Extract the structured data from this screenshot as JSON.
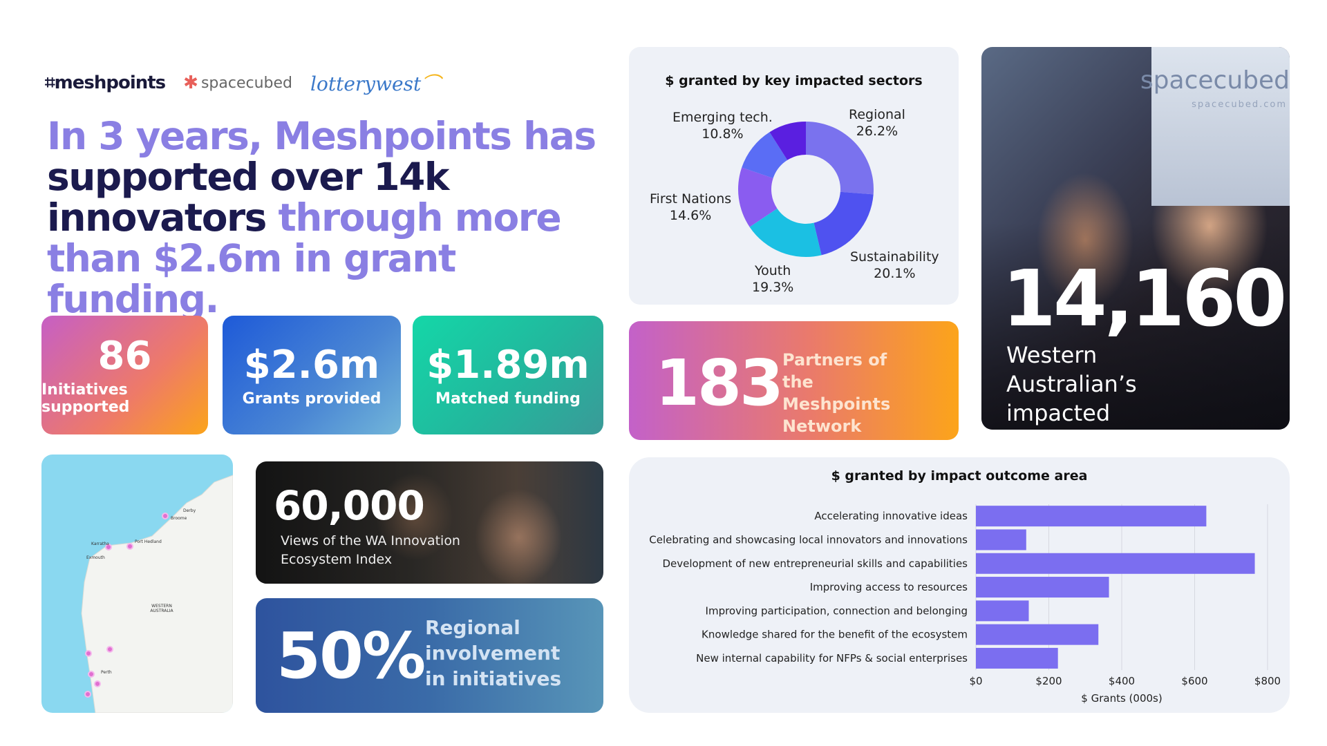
{
  "logos": {
    "meshpoints": "meshpoints",
    "spacecubed": "spacecubed",
    "lotterywest": "lotterywest"
  },
  "headline": {
    "part1": "In 3 years, Meshpoints has ",
    "part2": "supported over 14k innovators",
    "part3": " through more than $2.6m in grant funding."
  },
  "stats": [
    {
      "value": "86",
      "label": "Initiatives supported"
    },
    {
      "value": "$2.6m",
      "label": "Grants provided"
    },
    {
      "value": "$1.89m",
      "label": "Matched funding"
    }
  ],
  "partners": {
    "value": "183",
    "label": "Partners of the Meshpoints Network"
  },
  "people": {
    "value": "14,160",
    "label": "Western Australian’s impacted",
    "sign": "spacecubed",
    "sign_url": "spacecubed.com"
  },
  "views": {
    "value": "60,000",
    "label": "Views of the WA Innovation Ecosystem Index"
  },
  "regional": {
    "value": "50%",
    "label": "Regional involvement in initiatives"
  },
  "map": {
    "towns": [
      "Derby",
      "Broome",
      "Port Hedland",
      "Karratha",
      "Exmouth",
      "WESTERN AUSTRALIA",
      "Perth"
    ]
  },
  "colors": {
    "accent": "#8a7fe3",
    "navy": "#1b1a4e",
    "bar": "#7b6ef0"
  },
  "chart_data": [
    {
      "type": "pie",
      "title": "$ granted by key impacted sectors",
      "categories": [
        "Regional",
        "Sustainability",
        "Youth",
        "First Nations",
        "Emerging tech."
      ],
      "values": [
        26.2,
        20.1,
        19.3,
        14.6,
        10.8
      ],
      "colors": [
        "#7a72ee",
        "#4f52f0",
        "#1bc0e3",
        "#8a5cf0",
        "#5a6df5",
        "#5a1fe0"
      ]
    },
    {
      "type": "bar",
      "orientation": "horizontal",
      "title": "$ granted by impact outcome area",
      "xlabel": "$ Grants (000s)",
      "ylabel": "",
      "xlim": [
        0,
        800
      ],
      "xticks": [
        "$0",
        "$200",
        "$400",
        "$600",
        "$800"
      ],
      "categories": [
        "Accelerating innovative ideas",
        "Celebrating and showcasing local innovators and innovations",
        "Development of new entrepreneurial skills and capabilities",
        "Improving access to resources",
        "Improving participation, connection and belonging",
        "Knowledge shared for the benefit of the ecosystem",
        "New internal capability for NFPs & social enterprises"
      ],
      "values": [
        632,
        138,
        765,
        365,
        145,
        336,
        225
      ]
    }
  ]
}
